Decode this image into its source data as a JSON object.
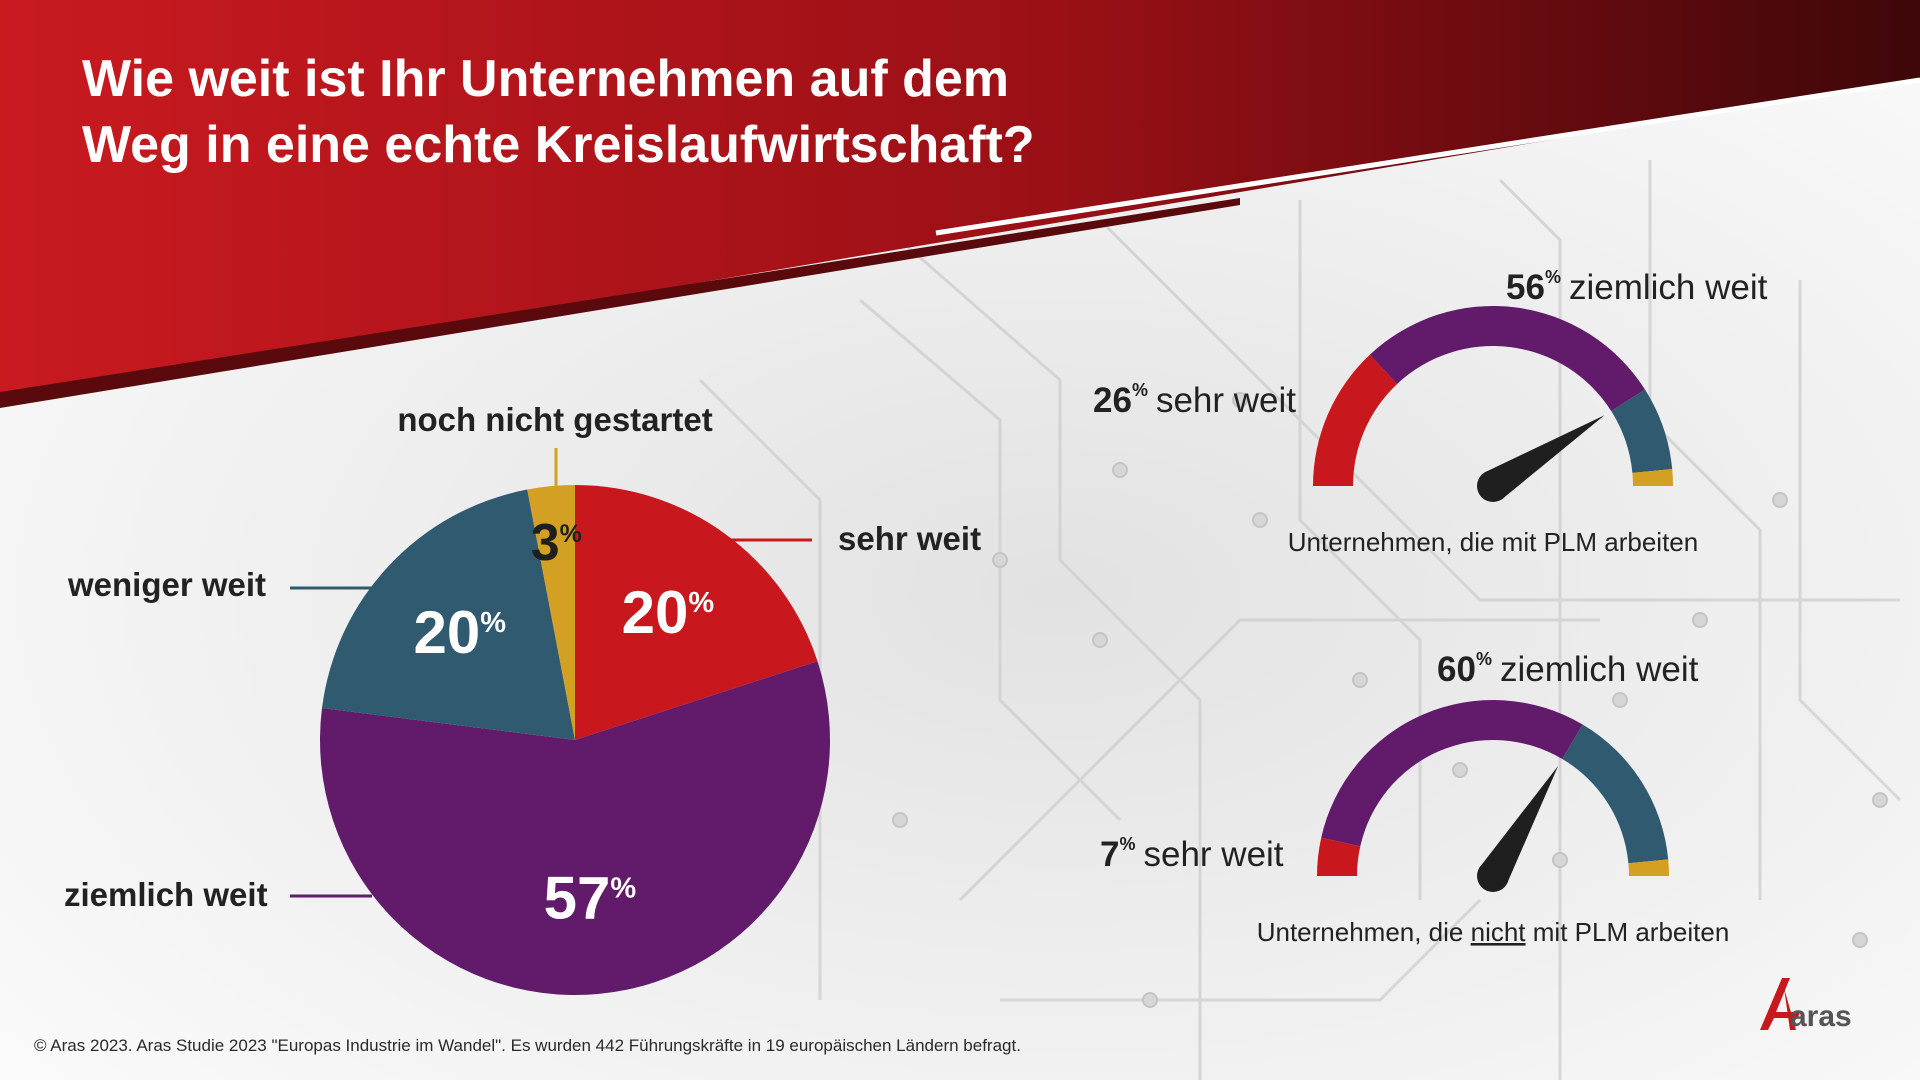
{
  "title": {
    "line1": "Wie weit ist Ihr Unternehmen auf dem",
    "line2": "Weg in eine echte Kreislaufwirtschaft?"
  },
  "colors": {
    "header_red": "#c8171d",
    "header_dark": "#4a0a0c",
    "sehr_weit": "#c8171d",
    "ziemlich_weit": "#621b6b",
    "weniger_weit": "#305a70",
    "noch_nicht": "#d4a024",
    "needle": "#1f1f1f"
  },
  "chart_data": [
    {
      "type": "pie",
      "title": "",
      "slices": [
        {
          "key": "sehr_weit",
          "label": "sehr weit",
          "value": 20,
          "value_label": "20",
          "unit": "%"
        },
        {
          "key": "ziemlich_weit",
          "label": "ziemlich weit",
          "value": 57,
          "value_label": "57",
          "unit": "%"
        },
        {
          "key": "weniger_weit",
          "label": "weniger weit",
          "value": 20,
          "value_label": "20",
          "unit": "%"
        },
        {
          "key": "noch_nicht",
          "label": "noch nicht gestartet",
          "value": 3,
          "value_label": "3",
          "unit": "%"
        }
      ]
    },
    {
      "type": "gauge",
      "caption": "Unternehmen, die mit PLM arbeiten",
      "segments": [
        {
          "key": "sehr_weit",
          "value": 26
        },
        {
          "key": "ziemlich_weit",
          "value": 56
        },
        {
          "key": "weniger_weit",
          "value": 15
        },
        {
          "key": "noch_nicht",
          "value": 3
        }
      ],
      "labels": [
        {
          "value": "26",
          "unit": "%",
          "text": "sehr weit"
        },
        {
          "value": "56",
          "unit": "%",
          "text": "ziemlich weit"
        }
      ],
      "needle_at_percent": 82
    },
    {
      "type": "gauge",
      "caption_before": "Unternehmen, die ",
      "caption_underlined": "nicht",
      "caption_after": " mit PLM arbeiten",
      "segments": [
        {
          "key": "sehr_weit",
          "value": 7
        },
        {
          "key": "ziemlich_weit",
          "value": 60
        },
        {
          "key": "weniger_weit",
          "value": 30
        },
        {
          "key": "noch_nicht",
          "value": 3
        }
      ],
      "labels": [
        {
          "value": "7",
          "unit": "%",
          "text": "sehr weit"
        },
        {
          "value": "60",
          "unit": "%",
          "text": "ziemlich weit"
        }
      ],
      "needle_at_percent": 67
    }
  ],
  "footnote": "© Aras 2023. Aras Studie 2023 \"Europas Industrie im Wandel\". Es wurden 442 Führungskräfte in 19 europäischen Ländern befragt.",
  "logo": {
    "text": "aras",
    "icon": "aras-logo-icon"
  }
}
